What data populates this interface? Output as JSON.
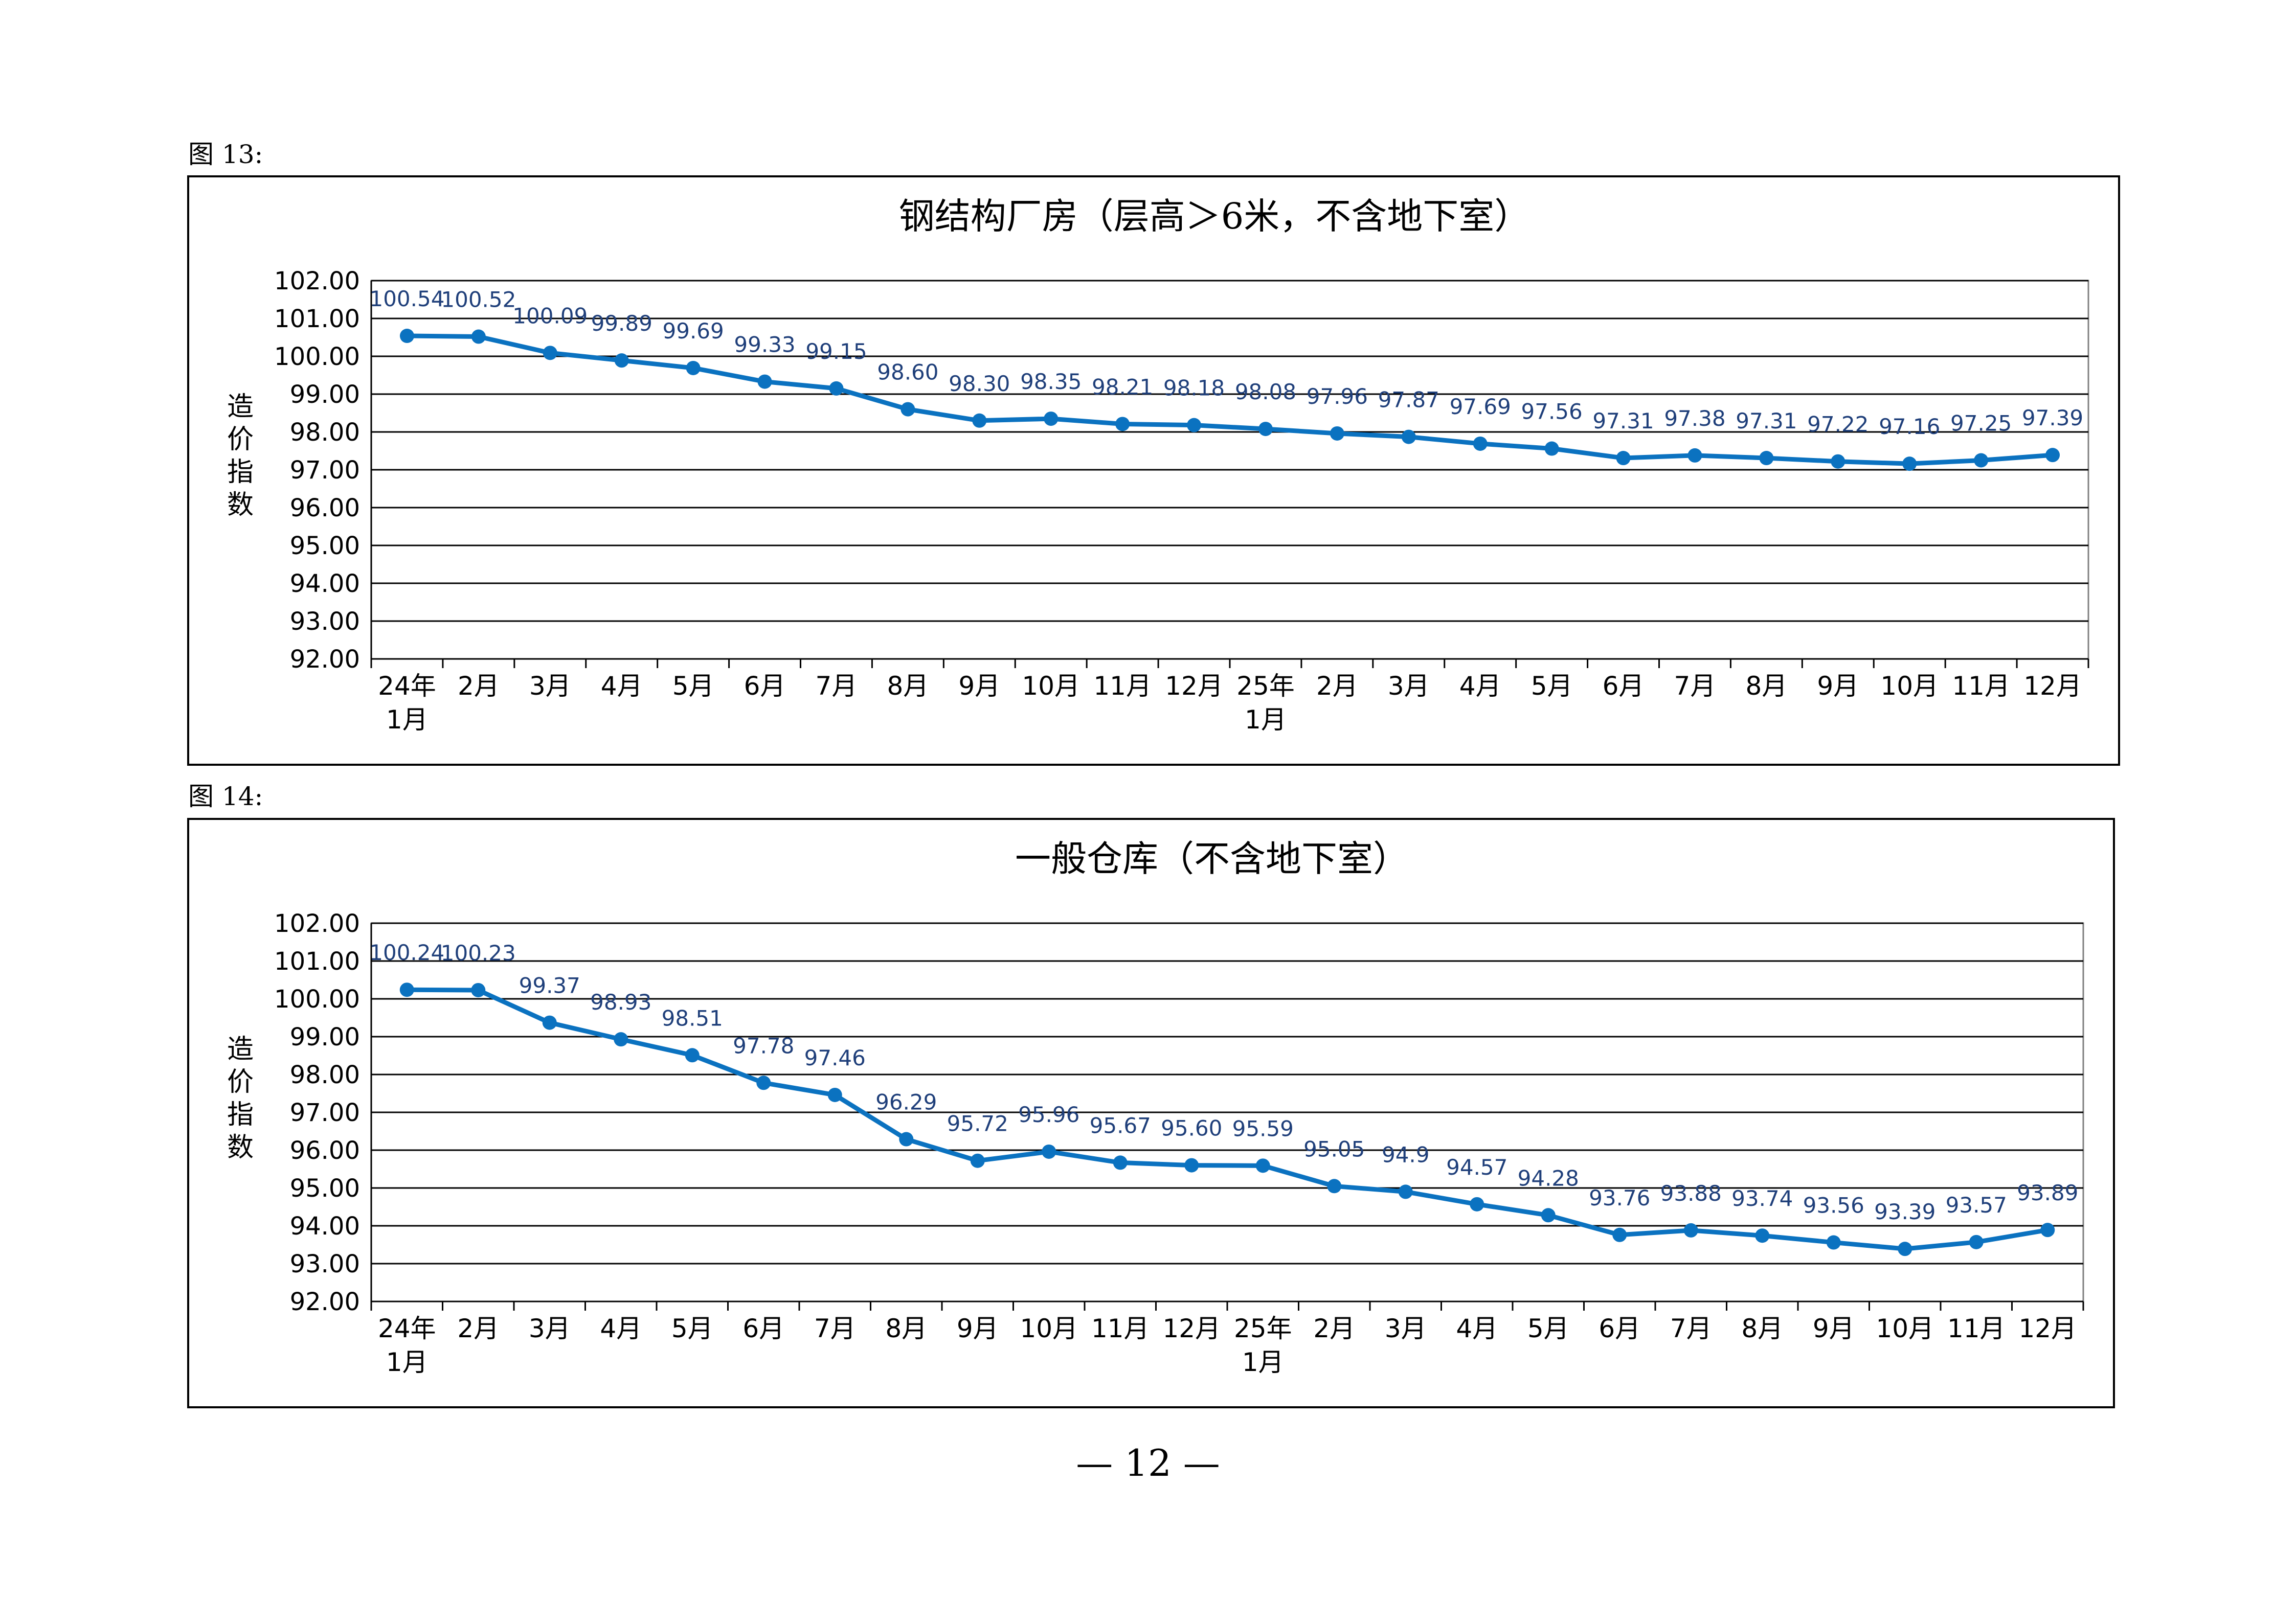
{
  "figures": [
    {
      "label": "图 13:"
    },
    {
      "label": "图 14:"
    }
  ],
  "page_number": "— 12 —",
  "colors": {
    "line": "#0b72c0",
    "data_label": "#1f3f7a",
    "grid": "#000000"
  },
  "chart_data": [
    {
      "type": "line",
      "title": "钢结构厂房（层高＞6米，不含地下室）",
      "ylabel": "造价指数",
      "xlabel": "",
      "ylim": [
        92,
        102
      ],
      "yticks": [
        "92.00",
        "93.00",
        "94.00",
        "95.00",
        "96.00",
        "97.00",
        "98.00",
        "99.00",
        "100.00",
        "101.00",
        "102.00"
      ],
      "categories": [
        "24年\n1月",
        "2月",
        "3月",
        "4月",
        "5月",
        "6月",
        "7月",
        "8月",
        "9月",
        "10月",
        "11月",
        "12月",
        "25年\n1月",
        "2月",
        "3月",
        "4月",
        "5月",
        "6月",
        "7月",
        "8月",
        "9月",
        "10月",
        "11月",
        "12月"
      ],
      "values": [
        100.54,
        100.52,
        100.09,
        99.89,
        99.69,
        99.33,
        99.15,
        98.6,
        98.3,
        98.35,
        98.21,
        98.18,
        98.08,
        97.96,
        97.87,
        97.69,
        97.56,
        97.31,
        97.38,
        97.31,
        97.22,
        97.16,
        97.25,
        97.39
      ],
      "value_labels": [
        "100.54",
        "100.52",
        "100.09",
        "99.89",
        "99.69",
        "99.33",
        "99.15",
        "98.60",
        "98.30",
        "98.35",
        "98.21",
        "98.18",
        "98.08",
        "97.96",
        "97.87",
        "97.69",
        "97.56",
        "97.31",
        "97.38",
        "97.31",
        "97.22",
        "97.16",
        "97.25",
        "97.39"
      ],
      "grid": true
    },
    {
      "type": "line",
      "title": "一般仓库（不含地下室）",
      "ylabel": "造价指数",
      "xlabel": "",
      "ylim": [
        92,
        102
      ],
      "yticks": [
        "92.00",
        "93.00",
        "94.00",
        "95.00",
        "96.00",
        "97.00",
        "98.00",
        "99.00",
        "100.00",
        "101.00",
        "102.00"
      ],
      "categories": [
        "24年\n1月",
        "2月",
        "3月",
        "4月",
        "5月",
        "6月",
        "7月",
        "8月",
        "9月",
        "10月",
        "11月",
        "12月",
        "25年\n1月",
        "2月",
        "3月",
        "4月",
        "5月",
        "6月",
        "7月",
        "8月",
        "9月",
        "10月",
        "11月",
        "12月"
      ],
      "values": [
        100.24,
        100.23,
        99.37,
        98.93,
        98.51,
        97.78,
        97.46,
        96.29,
        95.72,
        95.96,
        95.67,
        95.6,
        95.59,
        95.05,
        94.9,
        94.57,
        94.28,
        93.76,
        93.88,
        93.74,
        93.56,
        93.39,
        93.57,
        93.89
      ],
      "value_labels": [
        "100.24",
        "100.23",
        "99.37",
        "98.93",
        "98.51",
        "97.78",
        "97.46",
        "96.29",
        "95.72",
        "95.96",
        "95.67",
        "95.60",
        "95.59",
        "95.05",
        "94.9",
        "94.57",
        "94.28",
        "93.76",
        "93.88",
        "93.74",
        "93.56",
        "93.39",
        "93.57",
        "93.89"
      ],
      "grid": true
    }
  ]
}
